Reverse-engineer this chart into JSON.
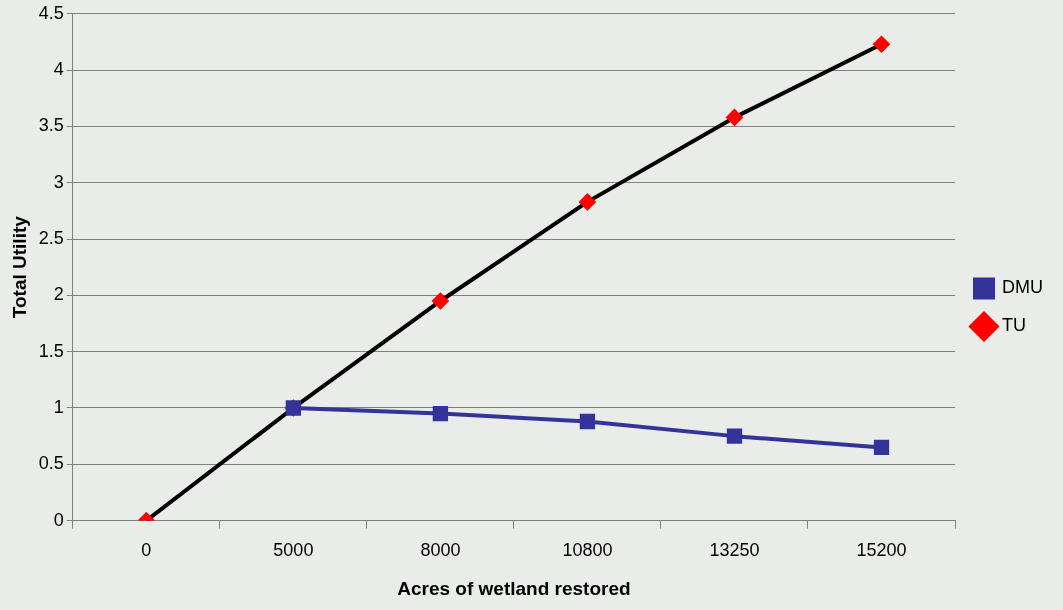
{
  "chart_data": {
    "type": "line",
    "xlabel": "Acres of wetland restored",
    "ylabel": "Total Utility",
    "categories": [
      "0",
      "5000",
      "8000",
      "10800",
      "13250",
      "15200"
    ],
    "series": [
      {
        "name": "TU",
        "color": "#000000",
        "marker": "diamond",
        "colors": [
          "#ff0000",
          "#ff0000",
          "#ff0000",
          "#ff0000",
          "#ff0000",
          "#ff0000"
        ],
        "values": [
          0,
          1,
          1.95,
          2.83,
          3.58,
          4.23
        ]
      },
      {
        "name": "DMU",
        "color": "#333399",
        "marker": "square",
        "values": [
          null,
          1,
          0.95,
          0.88,
          0.75,
          0.65
        ]
      }
    ],
    "ylim": [
      0,
      4.5
    ],
    "yticks": [
      0,
      0.5,
      1,
      1.5,
      2,
      2.5,
      3,
      3.5,
      4,
      4.5
    ],
    "grid": "y",
    "legend": "right",
    "line_style": "solid"
  }
}
